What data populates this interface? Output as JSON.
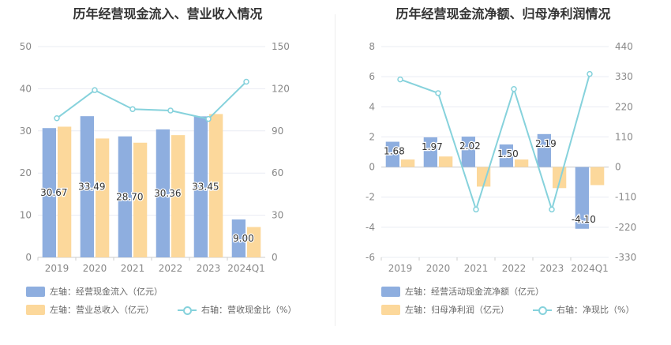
{
  "colors": {
    "blue": "#8eaedf",
    "orange": "#fcd89b",
    "teal": "#86d2dc",
    "axis_text": "#888888",
    "grid": "#e9ecf3"
  },
  "chart_data": [
    {
      "type": "bar",
      "title": "历年经营现金流入、营业收入情况",
      "categories": [
        "2019",
        "2020",
        "2021",
        "2022",
        "2023",
        "2024Q1"
      ],
      "left_axis": {
        "ylim": [
          0,
          50
        ],
        "ticks": [
          0,
          10,
          20,
          30,
          40,
          50
        ]
      },
      "right_axis": {
        "ylim": [
          0,
          150
        ],
        "ticks": [
          0,
          30,
          60,
          90,
          120,
          150
        ]
      },
      "series": [
        {
          "name": "左轴：经营现金流入（亿元）",
          "type": "bar",
          "axis": "left",
          "color": "#8eaedf",
          "values": [
            30.67,
            33.49,
            28.7,
            30.36,
            33.45,
            9.0
          ],
          "labels": [
            "30.67",
            "33.49",
            "28.70",
            "30.36",
            "33.45",
            "9.00"
          ]
        },
        {
          "name": "左轴：营业总收入（亿元）",
          "type": "bar",
          "axis": "left",
          "color": "#fcd89b",
          "values": [
            31.0,
            28.2,
            27.2,
            29.0,
            34.0,
            7.2
          ]
        },
        {
          "name": "右轴：营收现金比（%）",
          "type": "line",
          "axis": "right",
          "color": "#86d2dc",
          "values": [
            99,
            119,
            105.5,
            104.5,
            98.5,
            125
          ]
        }
      ]
    },
    {
      "type": "bar",
      "title": "历年经营现金流净额、归母净利润情况",
      "categories": [
        "2019",
        "2020",
        "2021",
        "2022",
        "2023",
        "2024Q1"
      ],
      "left_axis": {
        "ylim": [
          -6,
          8
        ],
        "ticks": [
          -6,
          -4,
          -2,
          0,
          2,
          4,
          6,
          8
        ]
      },
      "right_axis": {
        "ylim": [
          -330,
          440
        ],
        "ticks": [
          -330,
          -220,
          -110,
          0,
          110,
          220,
          330,
          440
        ]
      },
      "series": [
        {
          "name": "左轴：经营活动现金流净额（亿元）",
          "type": "bar",
          "axis": "left",
          "color": "#8eaedf",
          "values": [
            1.68,
            1.97,
            2.02,
            1.5,
            2.19,
            -4.1
          ],
          "labels": [
            "1.68",
            "1.97",
            "2.02",
            "1.50",
            "2.19",
            "-4.10"
          ]
        },
        {
          "name": "左轴：归母净利润（亿元）",
          "type": "bar",
          "axis": "left",
          "color": "#fcd89b",
          "values": [
            0.5,
            0.7,
            -1.3,
            0.5,
            -1.4,
            -1.2
          ]
        },
        {
          "name": "右轴：净现比（%）",
          "type": "line",
          "axis": "right",
          "color": "#86d2dc",
          "values": [
            320,
            270,
            -155,
            285,
            -155,
            340
          ]
        }
      ]
    }
  ]
}
